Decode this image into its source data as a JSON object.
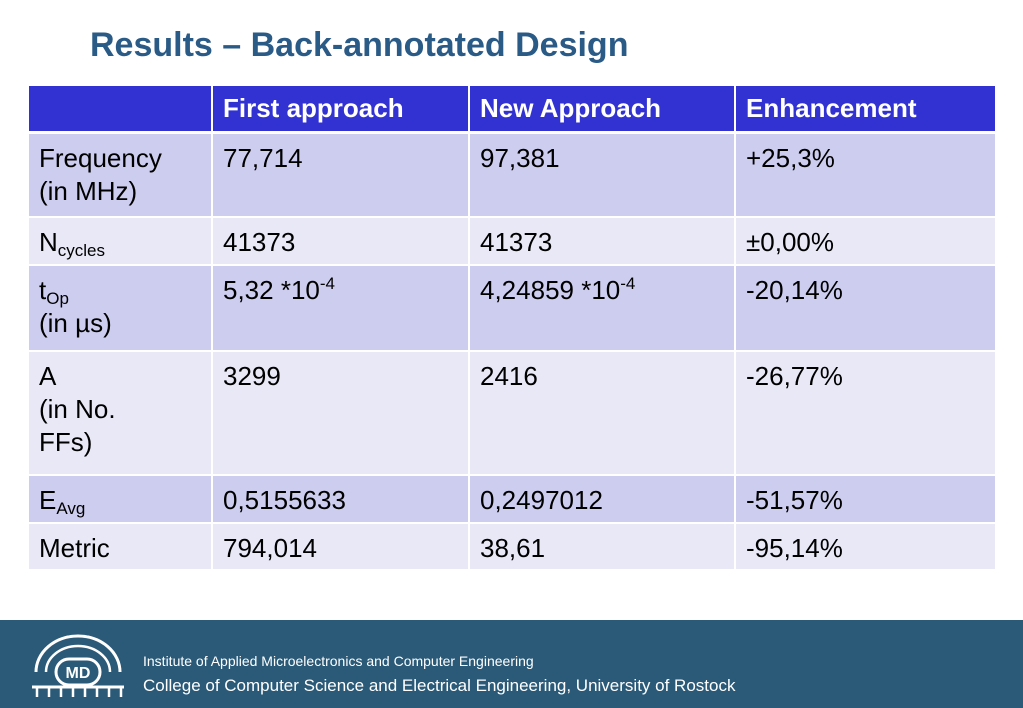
{
  "slide": {
    "title": "Results – Back-annotated Design"
  },
  "table": {
    "headers": [
      "",
      "First approach",
      "New Approach",
      "Enhancement"
    ],
    "rows": [
      {
        "label_line1": "Frequency",
        "label_line2": "(in MHz)",
        "first": "77,714",
        "new": "97,381",
        "enhancement": "+25,3%"
      },
      {
        "label_main": "N",
        "label_sub": "cycles",
        "first": "41373",
        "new": "41373",
        "enhancement": "±0,00%"
      },
      {
        "label_main": "t",
        "label_sub": "Op",
        "label_line2": "(in µs)",
        "first_base": "5,32 *10",
        "first_exp": "-4",
        "new_base": "4,24859 *10",
        "new_exp": "-4",
        "enhancement": "-20,14%"
      },
      {
        "label_line1": "A",
        "label_line2": "(in No.",
        "label_line3": "FFs)",
        "first": "3299",
        "new": "2416",
        "enhancement": "-26,77%"
      },
      {
        "label_main": "E",
        "label_sub": "Avg",
        "first": "0,5155633",
        "new": "0,2497012",
        "enhancement": "-51,57%"
      },
      {
        "label_line1": "Metric",
        "first": "794,014",
        "new": "38,61",
        "enhancement": "-95,14%"
      }
    ]
  },
  "footer": {
    "logo_text": "MD",
    "institute": "Institute of Applied Microelectronics and Computer Engineering",
    "college": "College of Computer Science and Electrical Engineering, University of Rostock"
  },
  "colors": {
    "title": "#2a5a86",
    "header_bg": "#3232d2",
    "row_odd": "#cdcdf0",
    "row_even": "#e8e8f7",
    "footer_bg": "#2a5a78"
  }
}
